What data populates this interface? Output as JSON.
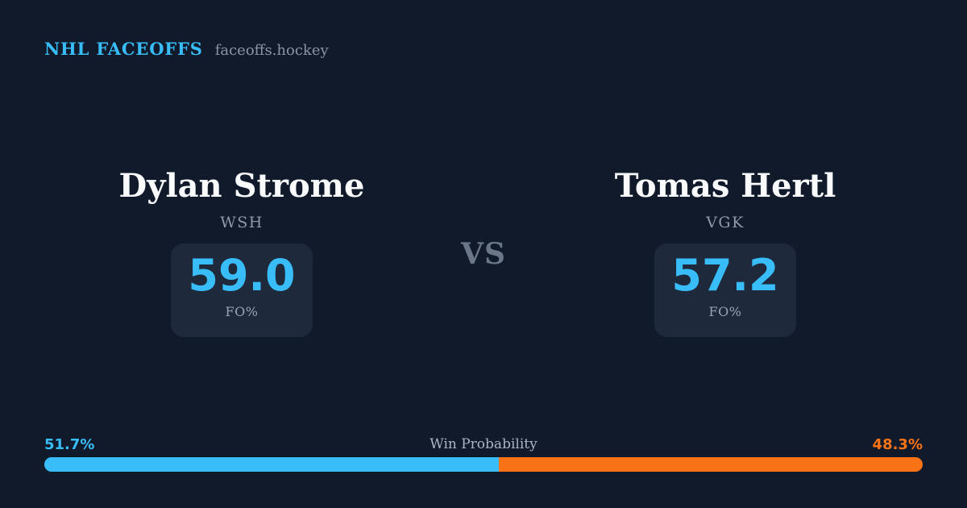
{
  "header": {
    "brand": "NHL FACEOFFS",
    "site": "faceoffs.hockey"
  },
  "matchup": {
    "vs_label": "VS",
    "players": [
      {
        "name": "Dylan Strome",
        "team": "WSH",
        "stat_value": "59.0",
        "stat_label": "FO%"
      },
      {
        "name": "Tomas Hertl",
        "team": "VGK",
        "stat_value": "57.2",
        "stat_label": "FO%"
      }
    ]
  },
  "win_probability": {
    "title": "Win Probability",
    "left_pct_label": "51.7%",
    "right_pct_label": "48.3%",
    "left_value": 51.7,
    "right_value": 48.3
  },
  "colors": {
    "background": "#111a2b",
    "card": "#1e293b",
    "accent_blue": "#38bdf8",
    "accent_orange": "#f97316",
    "player_name": "#f8fafc",
    "secondary_text": "#8f99aa"
  }
}
